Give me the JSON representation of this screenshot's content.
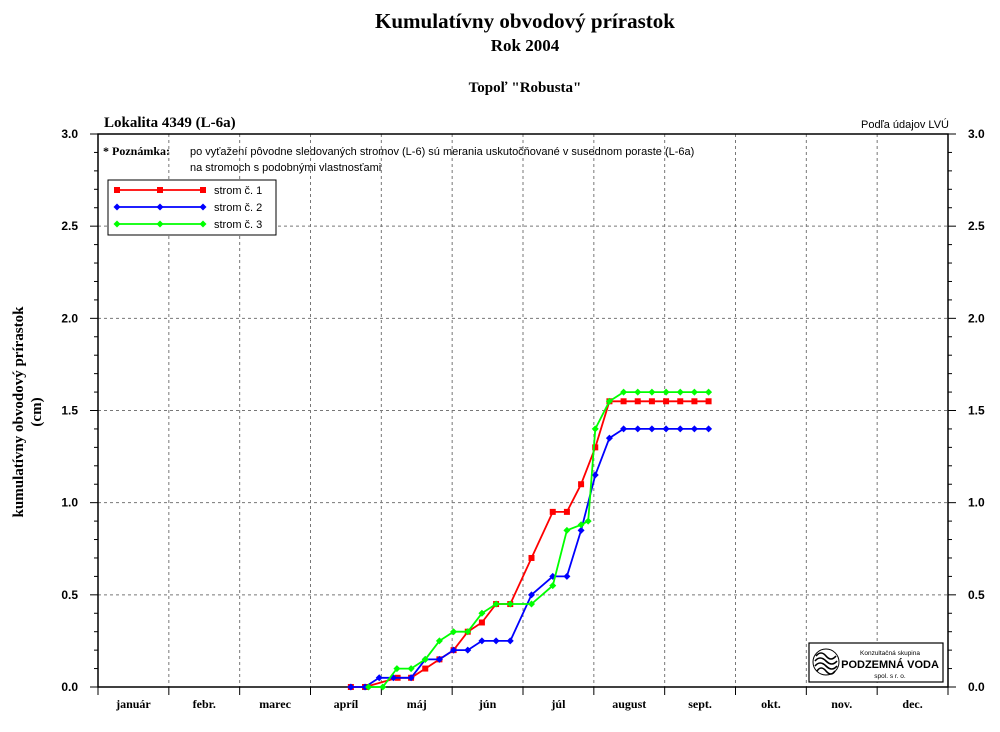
{
  "chart_data": {
    "type": "line",
    "title": "Kumulatívny obvodový prírastok",
    "subtitle": "Rok 2004",
    "species": "Topoľ \"Robusta\"",
    "location": "Lokalita 4349 (L-6a)",
    "source_note": "Podľa údajov LVÚ",
    "note_label": "* Poznámka:",
    "note_line1": "po vyťažení pôvodne sledovaných stromov (L-6) sú merania uskutočňované v susednom poraste (L-6a)",
    "note_line2": "na stromoch s podobnými vlastnosťami",
    "ylabel_line1": "kumulatívny obvodový prírastok",
    "ylabel_line2": "(cm)",
    "xlabel": "",
    "ylim": [
      0,
      3.0
    ],
    "xlim": [
      0,
      12
    ],
    "grid": true,
    "legend_position": "top-left",
    "yticks": [
      "0.0",
      "0.5",
      "1.0",
      "1.5",
      "2.0",
      "2.5",
      "3.0"
    ],
    "months": [
      "január",
      "febr.",
      "marec",
      "apríl",
      "máj",
      "jún",
      "júl",
      "august",
      "sept.",
      "okt.",
      "nov.",
      "dec."
    ],
    "series": [
      {
        "name": "strom č. 1",
        "color": "#ff0000",
        "marker": "square",
        "x": [
          3.57,
          3.77,
          4.23,
          4.42,
          4.62,
          4.82,
          5.02,
          5.22,
          5.42,
          5.62,
          5.82,
          6.12,
          6.42,
          6.62,
          6.82,
          7.02,
          7.22,
          7.42,
          7.62,
          7.82,
          8.02,
          8.22,
          8.42,
          8.62
        ],
        "y": [
          0.0,
          0.0,
          0.05,
          0.05,
          0.1,
          0.15,
          0.2,
          0.3,
          0.35,
          0.45,
          0.45,
          0.7,
          0.95,
          0.95,
          1.1,
          1.3,
          1.55,
          1.55,
          1.55,
          1.55,
          1.55,
          1.55,
          1.55,
          1.55
        ]
      },
      {
        "name": "strom č. 2",
        "color": "#0000ff",
        "marker": "diamond",
        "x": [
          3.57,
          3.77,
          3.97,
          4.17,
          4.42,
          4.62,
          4.82,
          5.02,
          5.22,
          5.42,
          5.62,
          5.82,
          6.12,
          6.42,
          6.62,
          6.82,
          7.02,
          7.22,
          7.42,
          7.62,
          7.82,
          8.02,
          8.22,
          8.42,
          8.62
        ],
        "y": [
          0.0,
          0.0,
          0.05,
          0.05,
          0.05,
          0.15,
          0.15,
          0.2,
          0.2,
          0.25,
          0.25,
          0.25,
          0.5,
          0.6,
          0.6,
          0.85,
          1.15,
          1.35,
          1.4,
          1.4,
          1.4,
          1.4,
          1.4,
          1.4,
          1.4
        ]
      },
      {
        "name": "strom č. 3",
        "color": "#00ff00",
        "marker": "diamond",
        "x": [
          3.82,
          4.02,
          4.22,
          4.42,
          4.62,
          4.82,
          5.02,
          5.22,
          5.42,
          5.62,
          5.82,
          6.12,
          6.42,
          6.62,
          6.82,
          6.92,
          7.02,
          7.22,
          7.42,
          7.62,
          7.82,
          8.02,
          8.22,
          8.42,
          8.62
        ],
        "y": [
          0.0,
          0.0,
          0.1,
          0.1,
          0.15,
          0.25,
          0.3,
          0.3,
          0.4,
          0.45,
          0.45,
          0.45,
          0.55,
          0.85,
          0.88,
          0.9,
          1.4,
          1.55,
          1.6,
          1.6,
          1.6,
          1.6,
          1.6,
          1.6,
          1.6
        ]
      }
    ]
  },
  "logo": {
    "line1": "Konzultačná skupina",
    "line2": "PODZEMNÁ VODA",
    "line3": "spol. s r. o."
  }
}
